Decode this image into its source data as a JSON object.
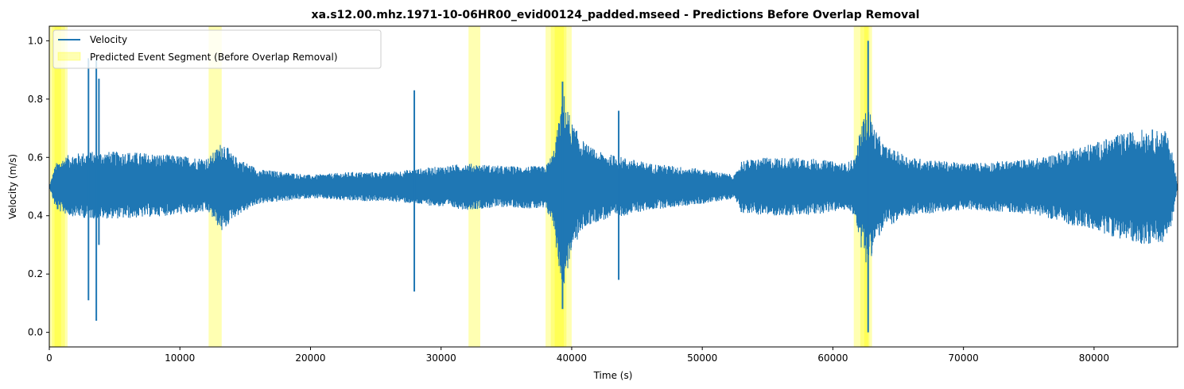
{
  "chart_data": {
    "type": "line",
    "title": "xa.s12.00.mhz.1971-10-06HR00_evid00124_padded.mseed - Predictions Before Overlap Removal",
    "xlabel": "Time (s)",
    "ylabel": "Velocity (m/s)",
    "xlim": [
      0,
      86400
    ],
    "ylim": [
      -0.05,
      1.05
    ],
    "xticks": [
      0,
      10000,
      20000,
      30000,
      40000,
      50000,
      60000,
      70000,
      80000
    ],
    "xtick_labels": [
      "0",
      "10000",
      "20000",
      "30000",
      "40000",
      "50000",
      "60000",
      "70000",
      "80000"
    ],
    "yticks": [
      0.0,
      0.2,
      0.4,
      0.6,
      0.8,
      1.0
    ],
    "ytick_labels": [
      "0.0",
      "0.2",
      "0.4",
      "0.6",
      "0.8",
      "1.0"
    ],
    "legend_position": "top-left",
    "series": [
      {
        "name": "Velocity",
        "color": "#1f77b4",
        "baseline": 0.5,
        "envelope": {
          "t": [
            0,
            500,
            1500,
            3000,
            6000,
            9000,
            11500,
            12200,
            12800,
            13300,
            14000,
            16000,
            18000,
            20000,
            23000,
            26000,
            28000,
            30000,
            32000,
            35000,
            38000,
            38600,
            39000,
            39400,
            40000,
            41000,
            42000,
            44000,
            46000,
            48000,
            50000,
            52500,
            53000,
            55000,
            58000,
            61000,
            61700,
            62200,
            62700,
            63200,
            64000,
            66000,
            70000,
            74000,
            76000,
            78000,
            80000,
            82000,
            84000,
            85500,
            86000,
            86400
          ],
          "upper": [
            0.5,
            0.58,
            0.61,
            0.62,
            0.62,
            0.61,
            0.6,
            0.6,
            0.63,
            0.66,
            0.61,
            0.56,
            0.55,
            0.54,
            0.55,
            0.55,
            0.56,
            0.57,
            0.58,
            0.57,
            0.57,
            0.62,
            0.72,
            0.82,
            0.72,
            0.65,
            0.62,
            0.6,
            0.58,
            0.57,
            0.56,
            0.54,
            0.59,
            0.6,
            0.6,
            0.58,
            0.6,
            0.72,
            0.78,
            0.7,
            0.64,
            0.6,
            0.58,
            0.59,
            0.6,
            0.63,
            0.65,
            0.68,
            0.7,
            0.69,
            0.62,
            0.5
          ],
          "lower": [
            0.5,
            0.42,
            0.4,
            0.39,
            0.39,
            0.4,
            0.41,
            0.41,
            0.37,
            0.34,
            0.39,
            0.44,
            0.45,
            0.46,
            0.45,
            0.45,
            0.44,
            0.43,
            0.42,
            0.43,
            0.42,
            0.37,
            0.22,
            0.15,
            0.28,
            0.36,
            0.38,
            0.4,
            0.42,
            0.43,
            0.44,
            0.46,
            0.41,
            0.4,
            0.4,
            0.42,
            0.4,
            0.28,
            0.22,
            0.3,
            0.36,
            0.4,
            0.42,
            0.41,
            0.4,
            0.37,
            0.35,
            0.32,
            0.3,
            0.31,
            0.38,
            0.5
          ]
        },
        "spikes": [
          {
            "t": 3000,
            "min": 0.11,
            "max": 0.94
          },
          {
            "t": 3600,
            "min": 0.04,
            "max": 0.94
          },
          {
            "t": 3800,
            "min": 0.3,
            "max": 0.87
          },
          {
            "t": 27950,
            "min": 0.14,
            "max": 0.83
          },
          {
            "t": 39300,
            "min": 0.08,
            "max": 0.86
          },
          {
            "t": 43600,
            "min": 0.18,
            "max": 0.76
          },
          {
            "t": 62700,
            "min": 0.0,
            "max": 1.0
          }
        ]
      }
    ],
    "highlight_series": {
      "name": "Predicted Event Segment (Before Overlap Removal)",
      "color": "#ffff00",
      "opacity": 0.3,
      "segments": [
        [
          0,
          1400
        ],
        [
          200,
          1200
        ],
        [
          400,
          900
        ],
        [
          12200,
          13200
        ],
        [
          32100,
          33000
        ],
        [
          38000,
          40000
        ],
        [
          38400,
          39600
        ],
        [
          38700,
          39400
        ],
        [
          61600,
          63000
        ],
        [
          62100,
          62700
        ],
        [
          62400,
          62800
        ]
      ]
    }
  }
}
